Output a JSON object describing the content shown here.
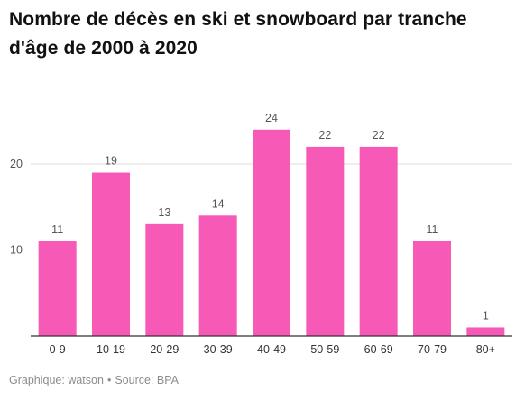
{
  "title": "Nombre de décès en ski et snowboard par tranche d'âge de 2000 à 2020",
  "footer": {
    "graphic": "Graphique: watson",
    "separator": "•",
    "source": "Source: BPA"
  },
  "colors": {
    "bar": "#f759b6",
    "grid": "#dedede",
    "axis": "#333333",
    "tick_text": "#555555",
    "label_text": "#555555"
  },
  "chart_data": {
    "type": "bar",
    "title": "Nombre de décès en ski et snowboard par tranche d'âge de 2000 à 2020",
    "xlabel": "",
    "ylabel": "",
    "categories": [
      "0-9",
      "10-19",
      "20-29",
      "30-39",
      "40-49",
      "50-59",
      "60-69",
      "70-79",
      "80+"
    ],
    "values": [
      11,
      19,
      13,
      14,
      24,
      22,
      22,
      11,
      1
    ],
    "ylim": [
      0,
      24
    ],
    "yticks": [
      10,
      20
    ],
    "grid": true,
    "data_labels": true
  }
}
